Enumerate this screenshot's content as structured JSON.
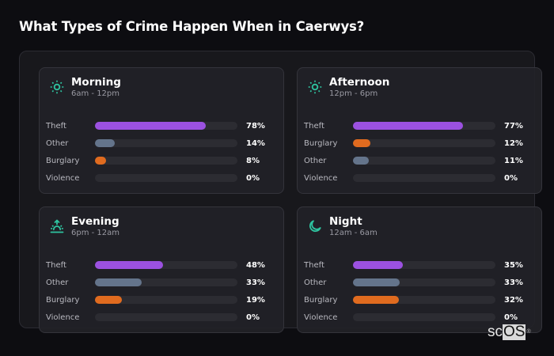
{
  "title": "What Types of Crime Happen When in Caerwys?",
  "colors": {
    "theft": "#9b51e0",
    "other": "#64748b",
    "burglary": "#e06b1f",
    "violence": "#3b3b42",
    "icon": "#2ec4a0"
  },
  "cards": [
    {
      "name": "Morning",
      "range": "6am - 12pm",
      "icon": "sun-icon",
      "rows": [
        {
          "label": "Theft",
          "value": 78,
          "pct": "78%",
          "type": "theft"
        },
        {
          "label": "Other",
          "value": 14,
          "pct": "14%",
          "type": "other"
        },
        {
          "label": "Burglary",
          "value": 8,
          "pct": "8%",
          "type": "burglary"
        },
        {
          "label": "Violence",
          "value": 0,
          "pct": "0%",
          "type": "violence"
        }
      ]
    },
    {
      "name": "Afternoon",
      "range": "12pm - 6pm",
      "icon": "sun-icon",
      "rows": [
        {
          "label": "Theft",
          "value": 77,
          "pct": "77%",
          "type": "theft"
        },
        {
          "label": "Burglary",
          "value": 12,
          "pct": "12%",
          "type": "burglary"
        },
        {
          "label": "Other",
          "value": 11,
          "pct": "11%",
          "type": "other"
        },
        {
          "label": "Violence",
          "value": 0,
          "pct": "0%",
          "type": "violence"
        }
      ]
    },
    {
      "name": "Evening",
      "range": "6pm - 12am",
      "icon": "sunset-icon",
      "rows": [
        {
          "label": "Theft",
          "value": 48,
          "pct": "48%",
          "type": "theft"
        },
        {
          "label": "Other",
          "value": 33,
          "pct": "33%",
          "type": "other"
        },
        {
          "label": "Burglary",
          "value": 19,
          "pct": "19%",
          "type": "burglary"
        },
        {
          "label": "Violence",
          "value": 0,
          "pct": "0%",
          "type": "violence"
        }
      ]
    },
    {
      "name": "Night",
      "range": "12am - 6am",
      "icon": "moon-icon",
      "rows": [
        {
          "label": "Theft",
          "value": 35,
          "pct": "35%",
          "type": "theft"
        },
        {
          "label": "Other",
          "value": 33,
          "pct": "33%",
          "type": "other"
        },
        {
          "label": "Burglary",
          "value": 32,
          "pct": "32%",
          "type": "burglary"
        },
        {
          "label": "Violence",
          "value": 0,
          "pct": "0%",
          "type": "violence"
        }
      ]
    }
  ],
  "logo": {
    "sc": "sc",
    "os": "OS",
    "reg": "®"
  },
  "chart_data": {
    "type": "bar",
    "title": "What Types of Crime Happen When in Caerwys?",
    "orientation": "horizontal",
    "xlabel": "",
    "ylabel": "",
    "xlim": [
      0,
      100
    ],
    "unit": "%",
    "panels": [
      {
        "title": "Morning",
        "subtitle": "6am - 12pm",
        "categories": [
          "Theft",
          "Other",
          "Burglary",
          "Violence"
        ],
        "values": [
          78,
          14,
          8,
          0
        ]
      },
      {
        "title": "Afternoon",
        "subtitle": "12pm - 6pm",
        "categories": [
          "Theft",
          "Burglary",
          "Other",
          "Violence"
        ],
        "values": [
          77,
          12,
          11,
          0
        ]
      },
      {
        "title": "Evening",
        "subtitle": "6pm - 12am",
        "categories": [
          "Theft",
          "Other",
          "Burglary",
          "Violence"
        ],
        "values": [
          48,
          33,
          19,
          0
        ]
      },
      {
        "title": "Night",
        "subtitle": "12am - 6am",
        "categories": [
          "Theft",
          "Other",
          "Burglary",
          "Violence"
        ],
        "values": [
          35,
          33,
          32,
          0
        ]
      }
    ],
    "series": [
      {
        "name": "Theft",
        "values": [
          78,
          77,
          48,
          35
        ]
      },
      {
        "name": "Other",
        "values": [
          14,
          11,
          33,
          33
        ]
      },
      {
        "name": "Burglary",
        "values": [
          8,
          12,
          19,
          32
        ]
      },
      {
        "name": "Violence",
        "values": [
          0,
          0,
          0,
          0
        ]
      }
    ],
    "categories": [
      "Morning",
      "Afternoon",
      "Evening",
      "Night"
    ],
    "grid": false,
    "legend": "none"
  }
}
